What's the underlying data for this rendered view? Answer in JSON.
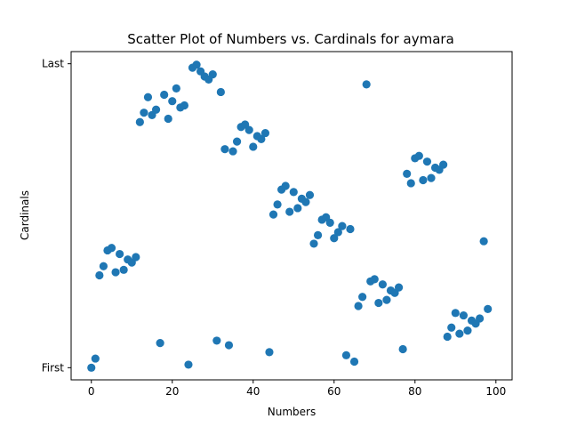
{
  "chart_data": {
    "type": "scatter",
    "title": "Scatter Plot of Numbers vs. Cardinals for aymara",
    "xlabel": "Numbers",
    "ylabel": "Cardinals",
    "xlim": [
      -5,
      104
    ],
    "ylim": [
      -0.04,
      1.04
    ],
    "xticks": [
      0,
      20,
      40,
      60,
      80,
      100
    ],
    "yticks": [
      {
        "value": 0,
        "label": "First"
      },
      {
        "value": 1,
        "label": "Last"
      }
    ],
    "grid": false,
    "marker_color": "#1f77b4",
    "points": [
      [
        0,
        0.0
      ],
      [
        1,
        0.03
      ],
      [
        2,
        0.304
      ],
      [
        3,
        0.334
      ],
      [
        4,
        0.386
      ],
      [
        5,
        0.394
      ],
      [
        6,
        0.314
      ],
      [
        7,
        0.374
      ],
      [
        8,
        0.322
      ],
      [
        9,
        0.356
      ],
      [
        10,
        0.346
      ],
      [
        11,
        0.364
      ],
      [
        12,
        0.808
      ],
      [
        13,
        0.839
      ],
      [
        14,
        0.89
      ],
      [
        15,
        0.831
      ],
      [
        16,
        0.849
      ],
      [
        17,
        0.081
      ],
      [
        18,
        0.898
      ],
      [
        19,
        0.819
      ],
      [
        20,
        0.877
      ],
      [
        21,
        0.919
      ],
      [
        22,
        0.856
      ],
      [
        23,
        0.863
      ],
      [
        24,
        0.01
      ],
      [
        25,
        0.987
      ],
      [
        26,
        0.997
      ],
      [
        27,
        0.975
      ],
      [
        28,
        0.958
      ],
      [
        29,
        0.948
      ],
      [
        30,
        0.965
      ],
      [
        31,
        0.089
      ],
      [
        32,
        0.907
      ],
      [
        33,
        0.719
      ],
      [
        34,
        0.074
      ],
      [
        35,
        0.712
      ],
      [
        36,
        0.744
      ],
      [
        37,
        0.792
      ],
      [
        38,
        0.8
      ],
      [
        39,
        0.782
      ],
      [
        40,
        0.727
      ],
      [
        41,
        0.762
      ],
      [
        42,
        0.752
      ],
      [
        43,
        0.772
      ],
      [
        44,
        0.051
      ],
      [
        45,
        0.504
      ],
      [
        46,
        0.537
      ],
      [
        47,
        0.586
      ],
      [
        48,
        0.598
      ],
      [
        49,
        0.513
      ],
      [
        50,
        0.578
      ],
      [
        51,
        0.525
      ],
      [
        52,
        0.556
      ],
      [
        53,
        0.545
      ],
      [
        54,
        0.568
      ],
      [
        55,
        0.408
      ],
      [
        56,
        0.436
      ],
      [
        57,
        0.487
      ],
      [
        58,
        0.495
      ],
      [
        59,
        0.477
      ],
      [
        60,
        0.426
      ],
      [
        61,
        0.446
      ],
      [
        62,
        0.466
      ],
      [
        63,
        0.041
      ],
      [
        64,
        0.456
      ],
      [
        65,
        0.02
      ],
      [
        66,
        0.203
      ],
      [
        67,
        0.233
      ],
      [
        68,
        0.932
      ],
      [
        69,
        0.284
      ],
      [
        70,
        0.291
      ],
      [
        71,
        0.213
      ],
      [
        72,
        0.274
      ],
      [
        73,
        0.223
      ],
      [
        74,
        0.254
      ],
      [
        75,
        0.246
      ],
      [
        76,
        0.264
      ],
      [
        77,
        0.061
      ],
      [
        78,
        0.638
      ],
      [
        79,
        0.607
      ],
      [
        80,
        0.689
      ],
      [
        81,
        0.697
      ],
      [
        82,
        0.617
      ],
      [
        83,
        0.678
      ],
      [
        84,
        0.624
      ],
      [
        85,
        0.658
      ],
      [
        86,
        0.651
      ],
      [
        87,
        0.668
      ],
      [
        88,
        0.102
      ],
      [
        89,
        0.132
      ],
      [
        90,
        0.18
      ],
      [
        91,
        0.112
      ],
      [
        92,
        0.172
      ],
      [
        93,
        0.122
      ],
      [
        94,
        0.155
      ],
      [
        95,
        0.145
      ],
      [
        96,
        0.162
      ],
      [
        97,
        0.416
      ],
      [
        98,
        0.193
      ]
    ]
  }
}
